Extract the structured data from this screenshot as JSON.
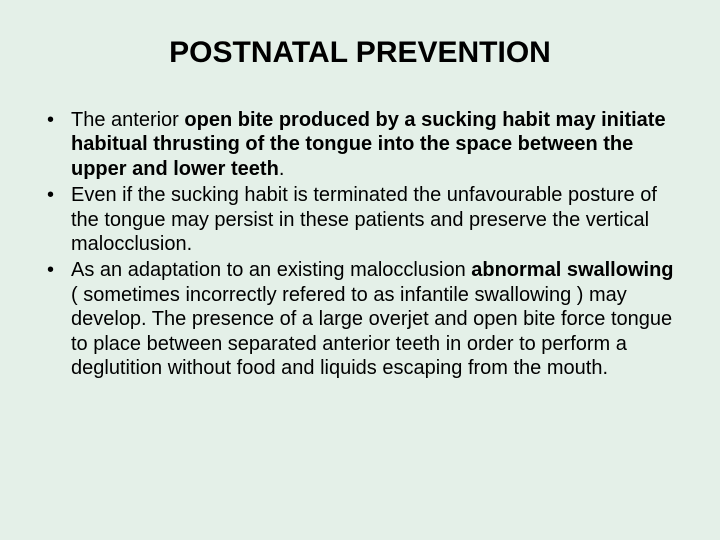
{
  "slide": {
    "title": "POSTNATAL PREVENTION",
    "background_color": "#e4f0e8",
    "text_color": "#000000",
    "title_fontsize": 30,
    "body_fontsize": 20,
    "font_family": "Arial",
    "bullets": [
      {
        "prefix": "The anterior ",
        "bold": "open bite produced by a sucking habit may initiate habitual thrusting of the tongue into the space between the upper and lower teeth",
        "suffix": "."
      },
      {
        "prefix": "Even if the sucking habit is terminated the unfavourable posture of the tongue may persist in these patients and preserve the vertical malocclusion.",
        "bold": "",
        "suffix": ""
      },
      {
        "prefix": "As an adaptation to an existing malocclusion ",
        "bold": "abnormal swallowing",
        "suffix": " ( sometimes incorrectly refered to as infantile swallowing ) may develop. The presence of a large overjet and open bite force tongue to place between separated anterior teeth in order to perform a deglutition without food and liquids escaping from the mouth."
      }
    ]
  }
}
